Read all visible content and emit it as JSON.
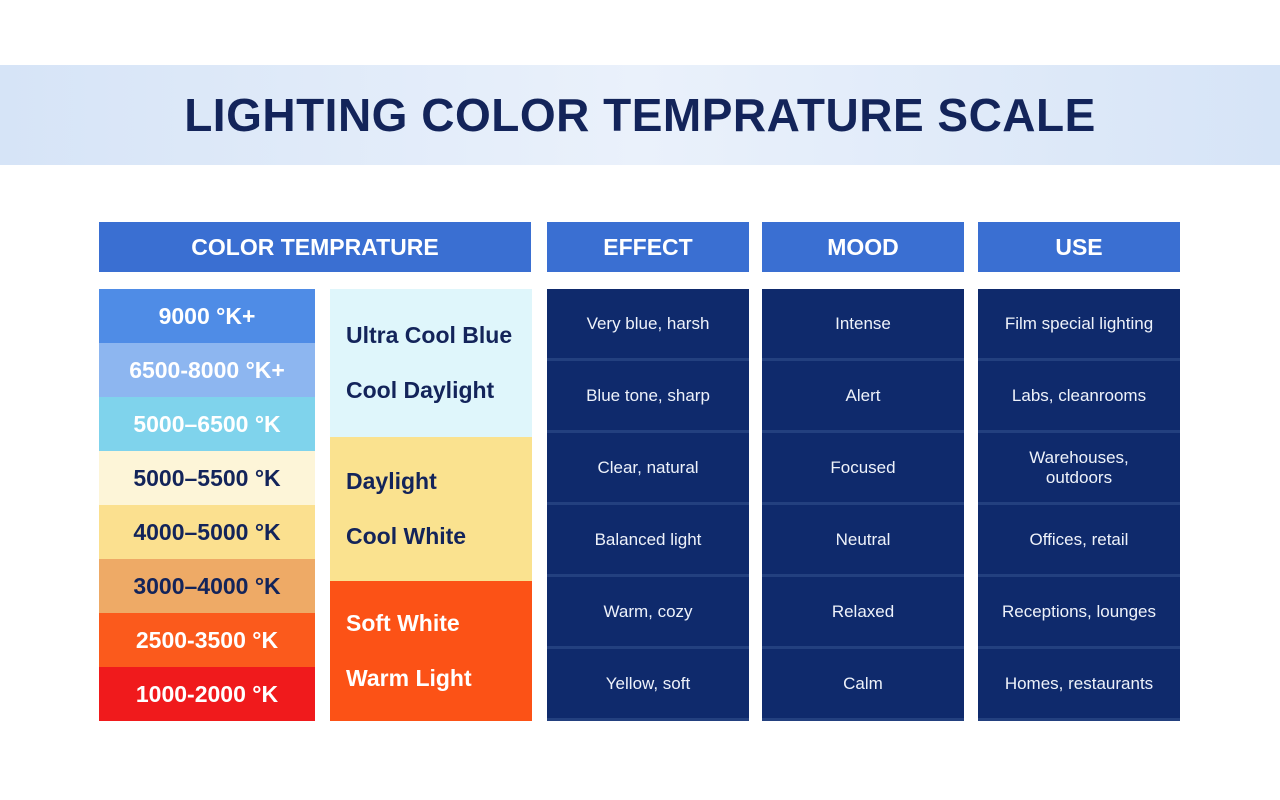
{
  "title": "LIGHTING COLOR TEMPRATURE SCALE",
  "temperature": {
    "header": "COLOR TEMPRATURE",
    "ranges": [
      {
        "label": "9000 °K+",
        "color": "#4f8ce6",
        "text_color": "#ffffff"
      },
      {
        "label": "6500-8000 °K+",
        "color": "#8db6f0",
        "text_color": "#ffffff"
      },
      {
        "label": "5000–6500 °K",
        "color": "#7fd3ec",
        "text_color": "#ffffff"
      },
      {
        "label": "5000–5500 °K",
        "color": "#fdf5d8",
        "text_color": "#13245a"
      },
      {
        "label": "4000–5000 °K",
        "color": "#fbe08f",
        "text_color": "#13245a"
      },
      {
        "label": "3000–4000 °K",
        "color": "#eeaa66",
        "text_color": "#13245a"
      },
      {
        "label": "2500-3500 °K",
        "color": "#fb5a1c",
        "text_color": "#ffffff"
      },
      {
        "label": "1000-2000 °K",
        "color": "#f01a1c",
        "text_color": "#ffffff"
      }
    ],
    "groups": [
      {
        "labels": [
          "Ultra Cool Blue",
          "Cool Daylight"
        ],
        "color": "#dff6fb",
        "text_color": "#13245a"
      },
      {
        "labels": [
          "Daylight",
          "Cool White"
        ],
        "color": "#fae28f",
        "text_color": "#13245a"
      },
      {
        "labels": [
          "Soft White",
          "Warm Light"
        ],
        "color": "#fc5216",
        "text_color": "#ffffff"
      }
    ]
  },
  "columns": [
    {
      "header": "EFFECT",
      "rows": [
        "Very blue, harsh",
        "Blue tone, sharp",
        "Clear, natural",
        "Balanced light",
        "Warm, cozy",
        "Yellow, soft"
      ]
    },
    {
      "header": "MOOD",
      "rows": [
        "Intense",
        "Alert",
        "Focused",
        "Neutral",
        "Relaxed",
        "Calm"
      ]
    },
    {
      "header": "USE",
      "rows": [
        "Film special lighting",
        "Labs, cleanrooms",
        "Warehouses, outdoors",
        "Offices, retail",
        "Receptions, lounges",
        "Homes, restaurants"
      ]
    }
  ]
}
